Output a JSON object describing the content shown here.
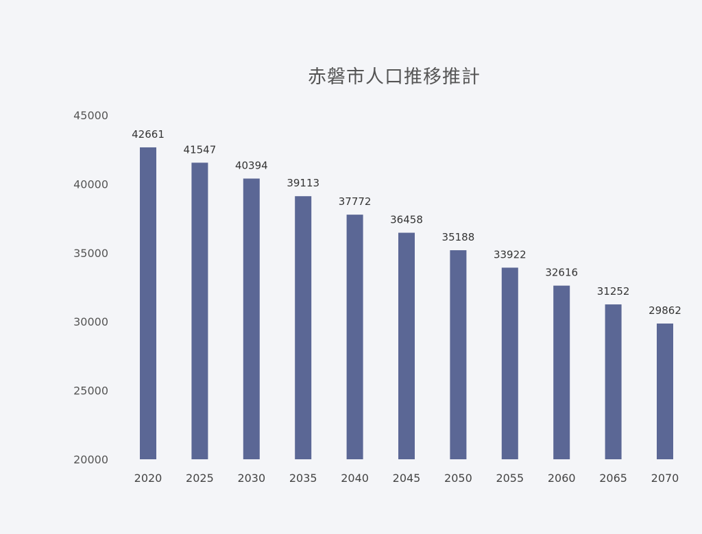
{
  "chart_data": {
    "type": "bar",
    "title": "赤磐市人口推移推計",
    "categories": [
      "2020",
      "2025",
      "2030",
      "2035",
      "2040",
      "2045",
      "2050",
      "2055",
      "2060",
      "2065",
      "2070"
    ],
    "values": [
      42661,
      41547,
      40394,
      39113,
      37772,
      36458,
      35188,
      33922,
      32616,
      31252,
      29862
    ],
    "ylim": [
      20000,
      45000
    ],
    "yticks": [
      20000,
      25000,
      30000,
      35000,
      40000,
      45000
    ],
    "xlabel": "",
    "ylabel": "",
    "grid": false,
    "legend": false,
    "bar_color": "#5b6795"
  }
}
